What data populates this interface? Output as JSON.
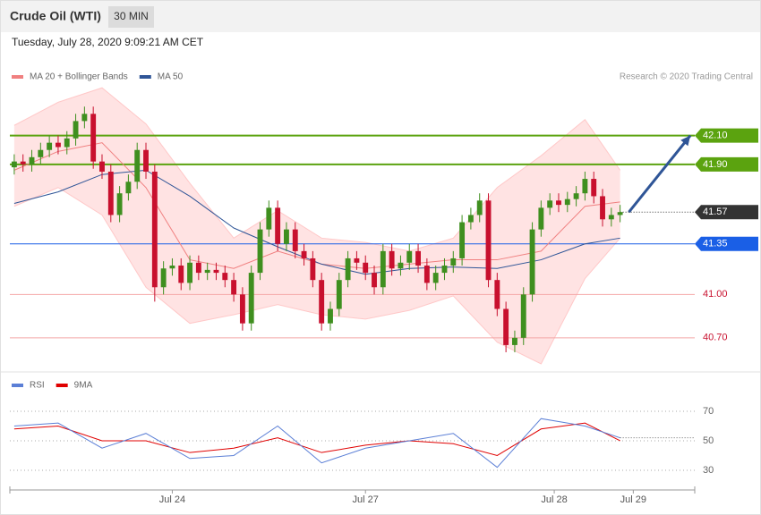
{
  "chart_data": {
    "type": "candlestick",
    "title": "Crude Oil (WTI)",
    "timeframe": "30 MIN",
    "subtitle": "Tuesday, July 28, 2020 9:09:21 AM CET",
    "source": "Research © 2020 Trading Central",
    "legend": [
      {
        "name": "MA 20 + Bollinger Bands",
        "color": "#f08080"
      },
      {
        "name": "MA 50",
        "color": "#2f5597"
      }
    ],
    "xlim": [
      -0.5,
      77.5
    ],
    "xticks": [
      {
        "value": 18,
        "label": "Jul 24"
      },
      {
        "value": 40,
        "label": "Jul 27"
      },
      {
        "value": 61.5,
        "label": "Jul 28"
      },
      {
        "value": 70.5,
        "label": "Jul 29"
      }
    ],
    "ylim": [
      40.47,
      42.45
    ],
    "up_color": "#3f8f1f",
    "down_color": "#c8102e",
    "candles": {
      "open": [
        41.88,
        41.92,
        41.9,
        41.95,
        42.0,
        42.05,
        42.02,
        42.08,
        42.2,
        42.25,
        41.92,
        41.85,
        41.55,
        41.7,
        41.78,
        42.0,
        41.85,
        41.05,
        41.18,
        41.2,
        41.08,
        41.22,
        41.15,
        41.17,
        41.15,
        41.1,
        41.0,
        40.8,
        41.15,
        41.45,
        41.6,
        41.35,
        41.45,
        41.3,
        41.25,
        41.1,
        40.8,
        40.9,
        41.1,
        41.25,
        41.22,
        41.15,
        41.05,
        41.3,
        41.18,
        41.22,
        41.3,
        41.2,
        41.08,
        41.15,
        41.2,
        41.25,
        41.5,
        41.55,
        41.65,
        41.1,
        40.9,
        40.65,
        40.7,
        41.0,
        41.45,
        41.6,
        41.65,
        41.62,
        41.66,
        41.7,
        41.8,
        41.68,
        41.52,
        41.55
      ],
      "high": [
        41.97,
        41.97,
        42.0,
        42.05,
        42.1,
        42.1,
        42.13,
        42.25,
        42.3,
        42.3,
        41.97,
        41.9,
        41.75,
        41.83,
        42.05,
        42.05,
        41.9,
        41.23,
        41.25,
        41.25,
        41.27,
        41.27,
        41.22,
        41.22,
        41.2,
        41.15,
        41.05,
        41.2,
        41.5,
        41.65,
        41.65,
        41.5,
        41.5,
        41.35,
        41.3,
        41.15,
        40.95,
        41.15,
        41.3,
        41.3,
        41.27,
        41.2,
        41.35,
        41.35,
        41.27,
        41.35,
        41.35,
        41.25,
        41.2,
        41.25,
        41.3,
        41.55,
        41.6,
        41.7,
        41.7,
        41.15,
        40.95,
        40.75,
        41.05,
        41.5,
        41.65,
        41.7,
        41.7,
        41.71,
        41.75,
        41.85,
        41.85,
        41.73,
        41.6,
        41.62
      ],
      "low": [
        41.83,
        41.85,
        41.85,
        41.9,
        41.95,
        41.97,
        41.97,
        42.03,
        42.15,
        41.87,
        41.8,
        41.5,
        41.5,
        41.65,
        41.73,
        41.8,
        40.95,
        41.0,
        41.13,
        41.03,
        41.03,
        41.1,
        41.1,
        41.1,
        41.05,
        40.95,
        40.75,
        40.75,
        41.1,
        41.4,
        41.3,
        41.3,
        41.25,
        41.2,
        41.05,
        40.75,
        40.75,
        40.85,
        41.05,
        41.17,
        41.1,
        41.0,
        41.0,
        41.13,
        41.13,
        41.17,
        41.15,
        41.03,
        41.03,
        41.1,
        41.15,
        41.2,
        41.45,
        41.5,
        41.05,
        40.85,
        40.6,
        40.6,
        40.65,
        40.95,
        41.4,
        41.55,
        41.57,
        41.57,
        41.61,
        41.65,
        41.63,
        41.47,
        41.47,
        41.5
      ],
      "close": [
        41.92,
        41.9,
        41.95,
        42.0,
        42.05,
        42.02,
        42.08,
        42.2,
        42.25,
        41.92,
        41.85,
        41.55,
        41.7,
        41.78,
        42.0,
        41.85,
        41.05,
        41.18,
        41.2,
        41.08,
        41.22,
        41.15,
        41.17,
        41.15,
        41.1,
        41.0,
        40.8,
        41.15,
        41.45,
        41.6,
        41.35,
        41.45,
        41.3,
        41.25,
        41.1,
        40.8,
        40.9,
        41.1,
        41.25,
        41.22,
        41.15,
        41.05,
        41.3,
        41.18,
        41.22,
        41.3,
        41.2,
        41.08,
        41.15,
        41.2,
        41.25,
        41.5,
        41.55,
        41.65,
        41.1,
        40.9,
        40.65,
        40.7,
        41.0,
        41.45,
        41.6,
        41.65,
        41.62,
        41.66,
        41.7,
        41.8,
        41.68,
        41.52,
        41.55,
        41.57
      ]
    },
    "indicators": {
      "x": [
        0,
        5,
        10,
        15,
        20,
        25,
        30,
        35,
        40,
        45,
        50,
        55,
        60,
        65,
        69
      ],
      "ma20": [
        41.86,
        41.99,
        42.05,
        41.74,
        41.24,
        41.18,
        41.3,
        41.21,
        41.18,
        41.21,
        41.24,
        41.24,
        41.3,
        41.61,
        41.64
      ],
      "upper": [
        42.17,
        42.33,
        42.43,
        42.18,
        41.77,
        41.39,
        41.58,
        41.39,
        41.36,
        41.3,
        41.39,
        41.74,
        41.96,
        42.21,
        41.86
      ],
      "lower": [
        41.61,
        41.74,
        41.55,
        41.05,
        40.8,
        40.86,
        40.93,
        40.86,
        40.83,
        40.89,
        40.99,
        40.67,
        40.52,
        41.11,
        41.39
      ],
      "ma50": [
        41.63,
        41.71,
        41.83,
        41.86,
        41.68,
        41.46,
        41.33,
        41.21,
        41.14,
        41.18,
        41.19,
        41.18,
        41.24,
        41.35,
        41.39
      ]
    },
    "levels": [
      {
        "value": 42.1,
        "label": "42.10",
        "color": "#5ba30f",
        "style": "box"
      },
      {
        "value": 41.9,
        "label": "41.90",
        "color": "#5ba30f",
        "style": "box"
      },
      {
        "value": 41.57,
        "label": "41.57",
        "color": "#333333",
        "style": "current"
      },
      {
        "value": 41.35,
        "label": "41.35",
        "color": "#1a5fe6",
        "style": "box"
      },
      {
        "value": 41,
        "label": "41.00",
        "color": "#c8102e",
        "style": "text"
      },
      {
        "value": 40.7,
        "label": "40.70",
        "color": "#c8102e",
        "style": "text"
      }
    ],
    "arrow": {
      "x": [
        70,
        77
      ],
      "y": [
        41.57,
        42.1
      ],
      "color": "#2f5597"
    },
    "rsi": {
      "legend": [
        {
          "name": "RSI",
          "color": "#5b7fd6"
        },
        {
          "name": "9MA",
          "color": "#e00000"
        }
      ],
      "ylim": [
        21.5,
        82.1
      ],
      "yticks": [
        70,
        50,
        30
      ],
      "x": [
        0,
        5,
        10,
        15,
        20,
        25,
        30,
        35,
        40,
        45,
        50,
        55,
        60,
        65,
        69
      ],
      "rsi": [
        60,
        62,
        45,
        55,
        38,
        40,
        60,
        35,
        45,
        50,
        55,
        32,
        65,
        60,
        52
      ],
      "ma9": [
        58,
        60,
        50,
        50,
        42,
        45,
        52,
        42,
        47,
        50,
        48,
        40,
        58,
        62,
        50
      ]
    }
  }
}
